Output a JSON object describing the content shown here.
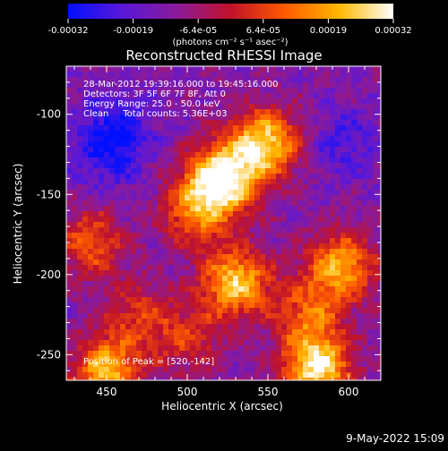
{
  "colorbar": {
    "ticks": [
      "-0.00032",
      "-0.00019",
      "-6.4e-05",
      "6.4e-05",
      "0.00019",
      "0.00032"
    ],
    "unit_label": "(photons cm⁻² s⁻¹ asec⁻²)",
    "colormap": [
      "#0010ff",
      "#5a18d8",
      "#8a1a9a",
      "#c0122a",
      "#ff5a00",
      "#ffb800",
      "#ffffff"
    ]
  },
  "plot": {
    "title": "Reconstructed RHESSI Image",
    "xlabel": "Heliocentric X (arcsec)",
    "ylabel": "Heliocentric Y (arcsec)",
    "xticks": [
      "450",
      "500",
      "550",
      "600"
    ],
    "yticks": [
      "-100",
      "-150",
      "-200",
      "-250"
    ],
    "info": {
      "time": "28-Mar-2012 19:39:16.000 to 19:45:16.000",
      "detectors": "Detectors: 3F 5F 6F 7F 8F, Att 0",
      "energy": "Energy Range: 25.0 - 50.0 keV",
      "clean": "Clean     Total counts: 5.36E+03"
    },
    "peak": "Position of Peak = [520,-142]"
  },
  "footer": {
    "date": "9-May-2022 15:09"
  },
  "chart_data": {
    "type": "heatmap",
    "title": "Reconstructed RHESSI Image",
    "xlabel": "Heliocentric X (arcsec)",
    "ylabel": "Heliocentric Y (arcsec)",
    "xlim": [
      425,
      620
    ],
    "ylim": [
      -266,
      -70
    ],
    "colorbar_range": [
      -0.00032,
      0.00032
    ],
    "colorbar_ticks": [
      -0.00032,
      -0.00019,
      -6.4e-05,
      6.4e-05,
      0.00019,
      0.00032
    ],
    "peak": [
      520,
      -142
    ],
    "bright_regions": [
      {
        "x": 522,
        "y": -140,
        "level": 1.0
      },
      {
        "x": 548,
        "y": -118,
        "level": 0.85
      },
      {
        "x": 505,
        "y": -160,
        "level": 0.55
      },
      {
        "x": 440,
        "y": -180,
        "level": 0.5
      },
      {
        "x": 530,
        "y": -205,
        "level": 0.8
      },
      {
        "x": 595,
        "y": -195,
        "level": 0.7
      },
      {
        "x": 450,
        "y": -260,
        "level": 0.75
      },
      {
        "x": 580,
        "y": -258,
        "level": 0.9
      },
      {
        "x": 470,
        "y": -225,
        "level": 0.35
      },
      {
        "x": 575,
        "y": -225,
        "level": 0.45
      },
      {
        "x": 500,
        "y": -240,
        "level": 0.35
      }
    ],
    "dark_regions": [
      {
        "x": 455,
        "y": -110,
        "level": 0.9
      },
      {
        "x": 598,
        "y": -118,
        "level": 0.55
      },
      {
        "x": 450,
        "y": -130,
        "level": 0.45
      }
    ]
  }
}
